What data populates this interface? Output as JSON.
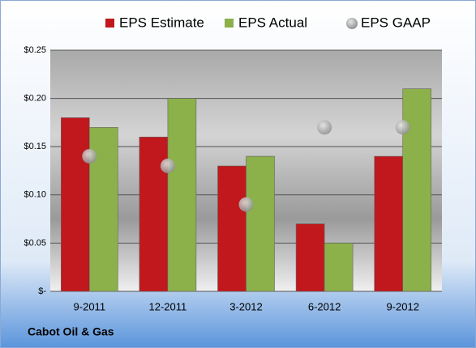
{
  "chart_data": {
    "type": "bar",
    "categories": [
      "9-2011",
      "12-2011",
      "3-2012",
      "6-2012",
      "9-2012"
    ],
    "series": [
      {
        "name": "EPS Estimate",
        "color": "#c0181c",
        "values": [
          0.18,
          0.16,
          0.13,
          0.07,
          0.14
        ]
      },
      {
        "name": "EPS Actual",
        "color": "#8cb04a",
        "values": [
          0.17,
          0.2,
          0.14,
          0.05,
          0.21
        ]
      },
      {
        "name": "EPS GAAP",
        "color": "#a6a6a6",
        "type": "scatter",
        "values": [
          0.14,
          0.13,
          0.09,
          0.17,
          0.17
        ]
      }
    ],
    "ylim": [
      0,
      0.25
    ],
    "yticks": [
      {
        "value": 0,
        "label": "$-"
      },
      {
        "value": 0.05,
        "label": "$0.05"
      },
      {
        "value": 0.1,
        "label": "$0.10"
      },
      {
        "value": 0.15,
        "label": "$0.15"
      },
      {
        "value": 0.2,
        "label": "$0.20"
      },
      {
        "value": 0.25,
        "label": "$0.25"
      }
    ],
    "grid": true,
    "legend": "top",
    "annotation": "Cabot Oil & Gas"
  }
}
